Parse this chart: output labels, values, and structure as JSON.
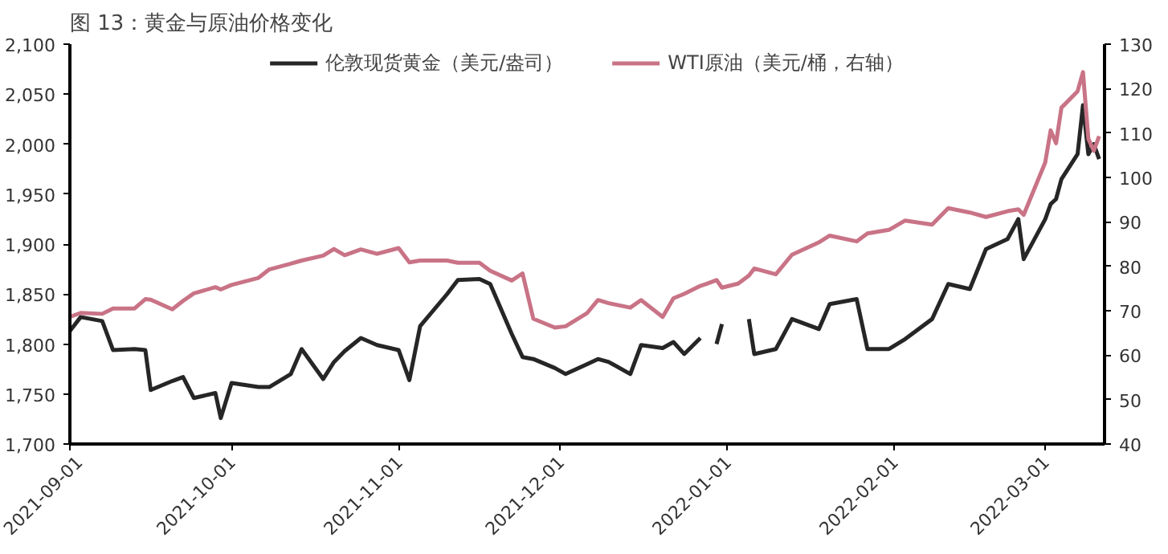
{
  "chart_data": {
    "type": "line",
    "title": "图 13：黄金与原油价格变化",
    "x": [
      "2021-09-01",
      "2021-09-03",
      "2021-09-07",
      "2021-09-09",
      "2021-09-13",
      "2021-09-15",
      "2021-09-16",
      "2021-09-20",
      "2021-09-22",
      "2021-09-24",
      "2021-09-28",
      "2021-09-29",
      "2021-10-01",
      "2021-10-06",
      "2021-10-08",
      "2021-10-12",
      "2021-10-14",
      "2021-10-18",
      "2021-10-20",
      "2021-10-22",
      "2021-10-25",
      "2021-10-28",
      "2021-11-01",
      "2021-11-03",
      "2021-11-05",
      "2021-11-10",
      "2021-11-12",
      "2021-11-16",
      "2021-11-18",
      "2021-11-22",
      "2021-11-24",
      "2021-11-26",
      "2021-11-30",
      "2021-12-02",
      "2021-12-06",
      "2021-12-08",
      "2021-12-10",
      "2021-12-14",
      "2021-12-16",
      "2021-12-20",
      "2021-12-22",
      "2021-12-24",
      "2021-12-27",
      "2021-12-28",
      "2021-12-30",
      "2021-12-31",
      "2022-01-03",
      "2022-01-05",
      "2022-01-06",
      "2022-01-10",
      "2022-01-13",
      "2022-01-18",
      "2022-01-20",
      "2022-01-25",
      "2022-01-27",
      "2022-01-31",
      "2022-02-03",
      "2022-02-08",
      "2022-02-11",
      "2022-02-15",
      "2022-02-18",
      "2022-02-22",
      "2022-02-24",
      "2022-02-25",
      "2022-03-01",
      "2022-03-02",
      "2022-03-03",
      "2022-03-04",
      "2022-03-07",
      "2022-03-08",
      "2022-03-09",
      "2022-03-10",
      "2022-03-11"
    ],
    "xlim": [
      "2021-09-01",
      "2022-03-12"
    ],
    "xticks": [
      {
        "value": "2021-09-01",
        "label": "2021-09-01"
      },
      {
        "value": "2021-10-01",
        "label": "2021-10-01"
      },
      {
        "value": "2021-11-01",
        "label": "2021-11-01"
      },
      {
        "value": "2021-12-01",
        "label": "2021-12-01"
      },
      {
        "value": "2022-01-01",
        "label": "2022-01-01"
      },
      {
        "value": "2022-02-01",
        "label": "2022-02-01"
      },
      {
        "value": "2022-03-01",
        "label": "2022-03-01"
      }
    ],
    "ylim": [
      1700,
      2100
    ],
    "yticks": [
      {
        "value": 1700,
        "label": "1,700"
      },
      {
        "value": 1750,
        "label": "1,750"
      },
      {
        "value": 1800,
        "label": "1,800"
      },
      {
        "value": 1850,
        "label": "1,850"
      },
      {
        "value": 1900,
        "label": "1,900"
      },
      {
        "value": 1950,
        "label": "1,950"
      },
      {
        "value": 2000,
        "label": "2,000"
      },
      {
        "value": 2050,
        "label": "2,050"
      },
      {
        "value": 2100,
        "label": "2,100"
      }
    ],
    "y2lim": [
      40,
      130
    ],
    "y2ticks": [
      40,
      50,
      60,
      70,
      80,
      90,
      100,
      110,
      120,
      130
    ],
    "grid": false,
    "legend": "top",
    "series": [
      {
        "name": "伦敦现货黄金（美元/盎司）",
        "color": "#262626",
        "values": [
          1813,
          1827,
          1823,
          1794,
          1795,
          1794,
          1754,
          1763,
          1767,
          1746,
          1751,
          1726,
          1761,
          1757,
          1757,
          1770,
          1795,
          1765,
          1782,
          1793,
          1806,
          1799,
          1794,
          1764,
          1818,
          1850,
          1864,
          1865,
          1860,
          1810,
          1787,
          1785,
          1776,
          1770,
          1780,
          1785,
          1782,
          1770,
          1799,
          1796,
          1802,
          1790,
          1806,
          null,
          1800,
          1820,
          null,
          1825,
          1790,
          1795,
          1825,
          1815,
          1840,
          1845,
          1795,
          1795,
          1805,
          1825,
          1860,
          1855,
          1895,
          1905,
          1925,
          1885,
          1925,
          1940,
          1945,
          1965,
          1990,
          2039,
          1990,
          2000,
          1985
        ]
      },
      {
        "name": "WTI原油（美元/桶，右轴）",
        "color": "#c97386",
        "axis": "y2",
        "values": [
          68.6,
          69.5,
          69.3,
          70.5,
          70.5,
          72.6,
          72.5,
          70.3,
          72.2,
          73.9,
          75.3,
          74.8,
          75.8,
          77.4,
          79.3,
          80.6,
          81.3,
          82.4,
          83.9,
          82.5,
          83.8,
          82.8,
          84.1,
          80.9,
          81.3,
          81.3,
          80.8,
          80.8,
          79.0,
          76.8,
          78.4,
          68.2,
          66.2,
          66.5,
          69.5,
          72.4,
          71.7,
          70.7,
          72.4,
          68.6,
          72.8,
          73.8,
          75.6,
          76.0,
          76.9,
          75.2,
          76.1,
          77.9,
          79.5,
          78.2,
          82.6,
          85.4,
          86.9,
          85.6,
          87.4,
          88.2,
          90.3,
          89.4,
          93.1,
          92.1,
          91.1,
          92.4,
          92.8,
          91.6,
          103.4,
          110.6,
          107.7,
          115.7,
          119.4,
          123.7,
          108.7,
          106.0,
          109.3
        ]
      }
    ]
  }
}
